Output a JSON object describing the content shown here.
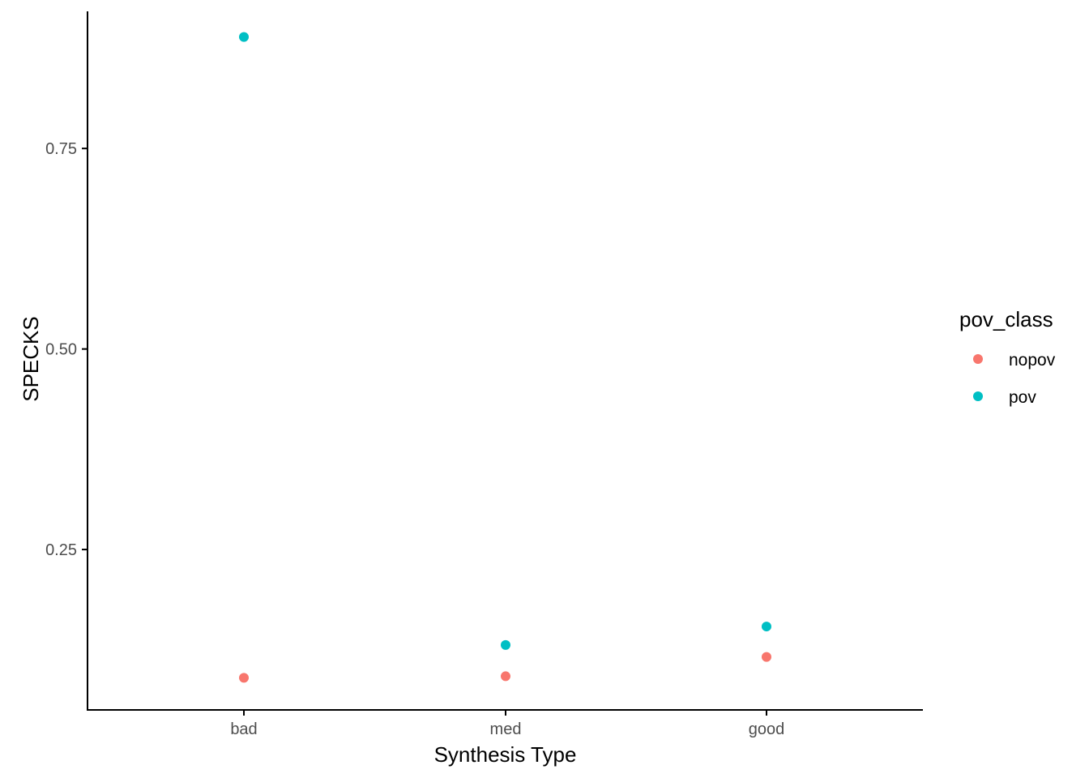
{
  "chart_data": {
    "type": "scatter",
    "title": "",
    "xlabel": "Synthesis Type",
    "ylabel": "SPECKS",
    "categories": [
      "bad",
      "med",
      "good"
    ],
    "ylim": [
      0.05,
      0.925
    ],
    "yticks": [
      0.25,
      0.5,
      0.75
    ],
    "ytick_labels": [
      "0.25",
      "0.50",
      "0.75"
    ],
    "grid": false,
    "legend": {
      "title": "pov_class",
      "placement": "right"
    },
    "series": [
      {
        "name": "nopov",
        "color": "#F8766D",
        "values": [
          0.09,
          0.092,
          0.116
        ]
      },
      {
        "name": "pov",
        "color": "#00BFC4",
        "values": [
          0.889,
          0.131,
          0.154
        ]
      }
    ]
  }
}
